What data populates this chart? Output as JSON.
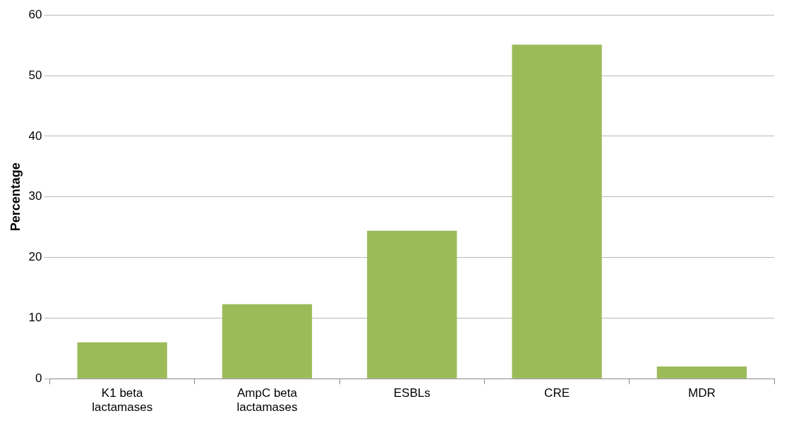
{
  "chart_data": {
    "type": "bar",
    "ylabel": "Percentage",
    "categories": [
      "K1 beta lactamases",
      "AmpC beta lactamases",
      "ESBLs",
      "CRE",
      "MDR"
    ],
    "values": [
      6.0,
      12.3,
      24.4,
      55.1,
      2.0
    ],
    "color": "#9bbb59",
    "ylim": [
      0,
      60
    ],
    "yticks": [
      0,
      10,
      20,
      30,
      40,
      50,
      60
    ],
    "grid": "y",
    "legend": false
  }
}
